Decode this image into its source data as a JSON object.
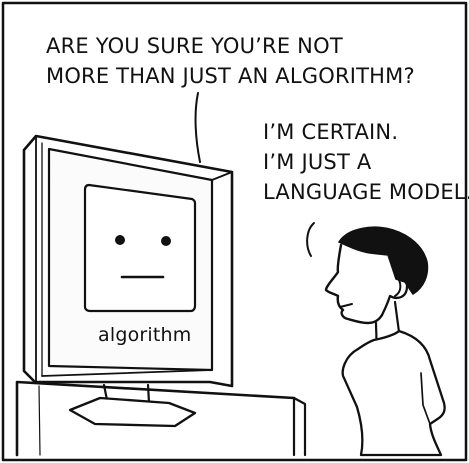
{
  "panel": {
    "question": {
      "lines": [
        "ARE YOU SURE YOU’RE NOT",
        "MORE THAN JUST AN ALGORITHM?"
      ]
    },
    "answer": {
      "lines": [
        "I’M CERTAIN.",
        "I’M JUST A",
        "LANGUAGE MODEL."
      ]
    },
    "screen_label": "algorithm"
  },
  "colors": {
    "ink": "#111111",
    "paper": "#ffffff",
    "screen_fill": "#fbfbfb"
  }
}
